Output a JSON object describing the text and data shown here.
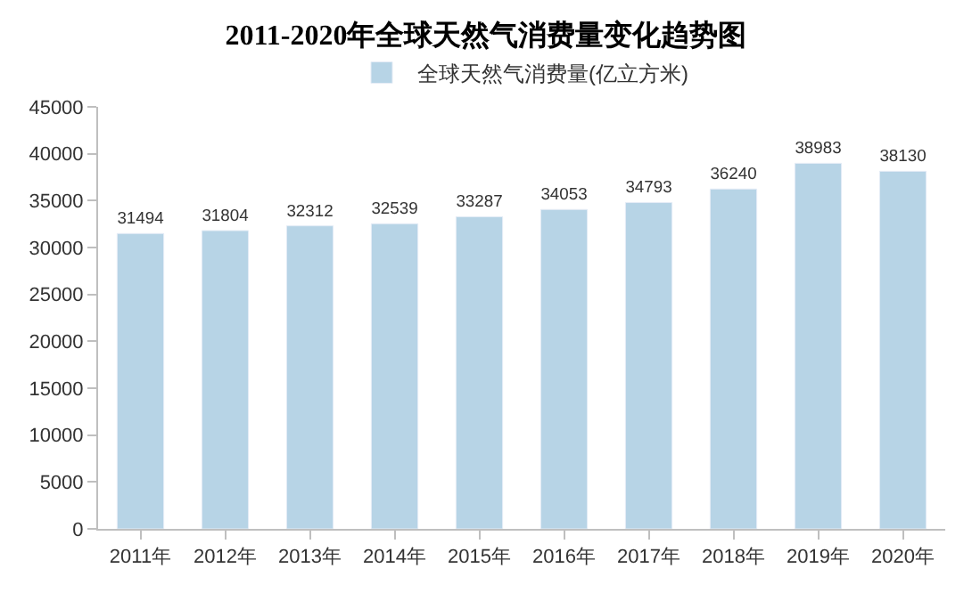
{
  "chart_data": {
    "type": "bar",
    "title": "2011-2020年全球天然气消费量变化趋势图",
    "categories": [
      "2011年",
      "2012年",
      "2013年",
      "2014年",
      "2015年",
      "2016年",
      "2017年",
      "2018年",
      "2019年",
      "2020年"
    ],
    "series": [
      {
        "name": "全球天然气消费量(亿立方米)",
        "color": "#b7d4e6",
        "values": [
          31494,
          31804,
          32312,
          32539,
          33287,
          34053,
          34793,
          36240,
          38983,
          38130
        ]
      }
    ],
    "ylim": [
      0,
      45000
    ],
    "yticks": [
      0,
      5000,
      10000,
      15000,
      20000,
      25000,
      30000,
      35000,
      40000,
      45000
    ],
    "data_labels": true,
    "grid": false,
    "legend": "top"
  }
}
